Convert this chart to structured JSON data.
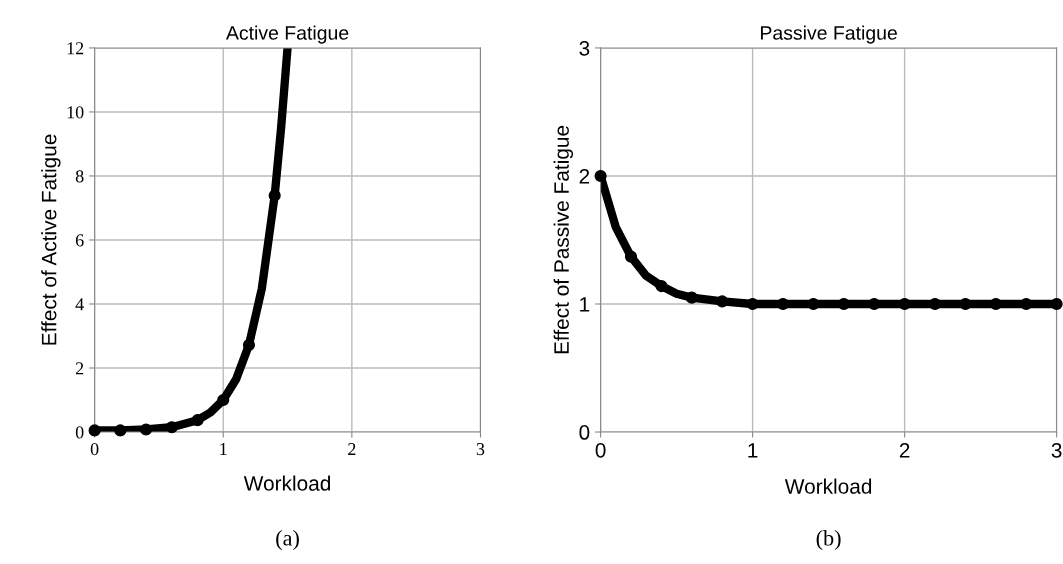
{
  "chart_data": [
    {
      "type": "line",
      "title": "Active Fatigue",
      "xlabel": "Workload",
      "ylabel": "Effect of Active Fatigue",
      "annotations": [
        "(a)"
      ],
      "xlim": [
        0,
        3
      ],
      "xticks": [
        0,
        1,
        2,
        3
      ],
      "ylim": [
        0,
        12
      ],
      "yticks": [
        0,
        2,
        4,
        6,
        8,
        10,
        12
      ],
      "grid": true,
      "legend": false,
      "series": [
        {
          "color": "#000000",
          "marker": "none",
          "x": [
            0,
            0.2,
            0.4,
            0.6,
            0.8,
            0.9,
            1.0,
            1.1,
            1.2,
            1.3,
            1.4,
            1.45,
            1.5
          ],
          "values": [
            0.05,
            0.05,
            0.08,
            0.15,
            0.37,
            0.61,
            1.0,
            1.65,
            2.72,
            4.48,
            7.39,
            9.5,
            12
          ]
        },
        {
          "type": "scatter",
          "color": "#000000",
          "marker": "circle",
          "x": [
            0,
            0.2,
            0.4,
            0.6,
            0.8,
            1.0,
            1.2,
            1.4
          ],
          "values": [
            0.05,
            0.05,
            0.08,
            0.15,
            0.37,
            1.0,
            2.72,
            7.39
          ]
        }
      ]
    },
    {
      "type": "line",
      "title": "Passive Fatigue",
      "xlabel": "Workload",
      "ylabel": "Effect of Passive Fatigue",
      "annotations": [
        "(b)"
      ],
      "xlim": [
        0,
        3
      ],
      "xticks": [
        0,
        1,
        2,
        3
      ],
      "ylim": [
        0,
        3
      ],
      "yticks": [
        0,
        1,
        2,
        3
      ],
      "grid": true,
      "legend": false,
      "series": [
        {
          "color": "#000000",
          "marker": "none",
          "x": [
            0,
            0.1,
            0.2,
            0.3,
            0.4,
            0.5,
            0.6,
            0.8,
            1.0,
            3.0
          ],
          "values": [
            2.0,
            1.6,
            1.37,
            1.22,
            1.14,
            1.08,
            1.05,
            1.02,
            1.0,
            1.0
          ]
        },
        {
          "type": "scatter",
          "color": "#000000",
          "marker": "circle",
          "x": [
            0,
            0.2,
            0.4,
            0.6,
            0.8,
            1.0,
            1.2,
            1.4,
            1.6,
            1.8,
            2.0,
            2.2,
            2.4,
            2.6,
            2.8,
            3.0
          ],
          "values": [
            2.0,
            1.37,
            1.14,
            1.05,
            1.02,
            1.0,
            1.0,
            1.0,
            1.0,
            1.0,
            1.0,
            1.0,
            1.0,
            1.0,
            1.0,
            1.0
          ]
        }
      ]
    }
  ]
}
